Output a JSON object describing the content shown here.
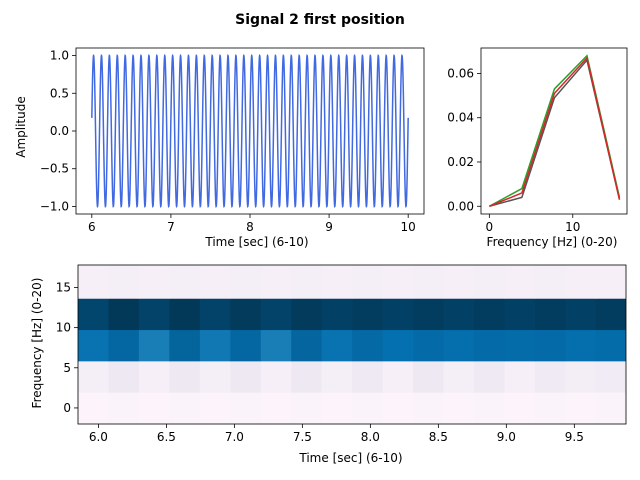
{
  "figure_title": "Signal 2 first position",
  "chart_data": [
    {
      "id": "time-signal",
      "type": "line",
      "xlabel": "Time [sec] (6-10)",
      "ylabel": "Amplitude",
      "xlim": [
        5.8,
        10.2
      ],
      "ylim": [
        -1.1,
        1.1
      ],
      "xticks": [
        6,
        7,
        8,
        9,
        10
      ],
      "yticks": [
        -1.0,
        -0.5,
        0.0,
        0.5,
        1.0
      ],
      "color": "#4169e1",
      "series": [
        {
          "x_start": 6.0,
          "x_end": 10.0,
          "frequency_hz": 10,
          "phase_deg": 10
        }
      ]
    },
    {
      "id": "spectrum",
      "type": "line",
      "xlabel": "Frequency [Hz] (0-20)",
      "ylabel": "",
      "xlim": [
        -1.0,
        16.5
      ],
      "ylim": [
        -0.0035,
        0.0715
      ],
      "xticks": [
        0,
        10
      ],
      "yticks": [
        0.0,
        0.02,
        0.04,
        0.06
      ],
      "series": [
        {
          "color": "#555555",
          "x": [
            0,
            3.9,
            7.8,
            11.7,
            15.6
          ],
          "y": [
            0.0,
            0.004,
            0.049,
            0.066,
            0.003
          ]
        },
        {
          "color": "#2ca02c",
          "x": [
            0,
            3.9,
            7.8,
            11.7,
            15.6
          ],
          "y": [
            0.0,
            0.008,
            0.053,
            0.068,
            0.004
          ]
        },
        {
          "color": "#d62728",
          "x": [
            0,
            3.9,
            7.8,
            11.7,
            15.6
          ],
          "y": [
            0.0,
            0.006,
            0.051,
            0.067,
            0.003
          ]
        }
      ]
    },
    {
      "id": "spectrogram",
      "type": "heatmap",
      "xlabel": "Time [sec] (6-10)",
      "ylabel": "Frequency [Hz] (0-20)",
      "xlim": [
        5.85,
        9.88
      ],
      "ylim": [
        -2.0,
        17.8
      ],
      "xticks": [
        6.0,
        6.5,
        7.0,
        7.5,
        8.0,
        8.5,
        9.0,
        9.5
      ],
      "yticks": [
        0,
        5,
        10,
        15
      ],
      "x_start": 5.85,
      "x_step": 0.224,
      "freq_bins": [
        0,
        3.9,
        7.8,
        11.7,
        15.6
      ],
      "freq_bin_width": 3.9,
      "colormap": "PuBu",
      "values": [
        [
          0.02,
          0.03,
          0.02,
          0.03,
          0.02,
          0.03,
          0.02,
          0.03,
          0.02,
          0.03,
          0.02,
          0.03,
          0.02,
          0.03,
          0.02,
          0.03,
          0.02,
          0.03
        ],
        [
          0.07,
          0.12,
          0.06,
          0.12,
          0.07,
          0.12,
          0.06,
          0.12,
          0.07,
          0.11,
          0.06,
          0.12,
          0.07,
          0.11,
          0.06,
          0.1,
          0.08,
          0.09
        ],
        [
          0.74,
          0.8,
          0.7,
          0.82,
          0.72,
          0.8,
          0.7,
          0.81,
          0.74,
          0.79,
          0.75,
          0.78,
          0.76,
          0.78,
          0.77,
          0.78,
          0.76,
          0.77
        ],
        [
          0.95,
          1.0,
          0.96,
          1.0,
          0.96,
          0.99,
          0.96,
          0.99,
          0.97,
          0.98,
          0.97,
          0.98,
          0.97,
          0.98,
          0.97,
          0.98,
          0.97,
          0.98
        ],
        [
          0.06,
          0.07,
          0.06,
          0.07,
          0.06,
          0.07,
          0.06,
          0.07,
          0.06,
          0.07,
          0.06,
          0.07,
          0.06,
          0.07,
          0.06,
          0.07,
          0.06,
          0.06
        ]
      ]
    }
  ]
}
